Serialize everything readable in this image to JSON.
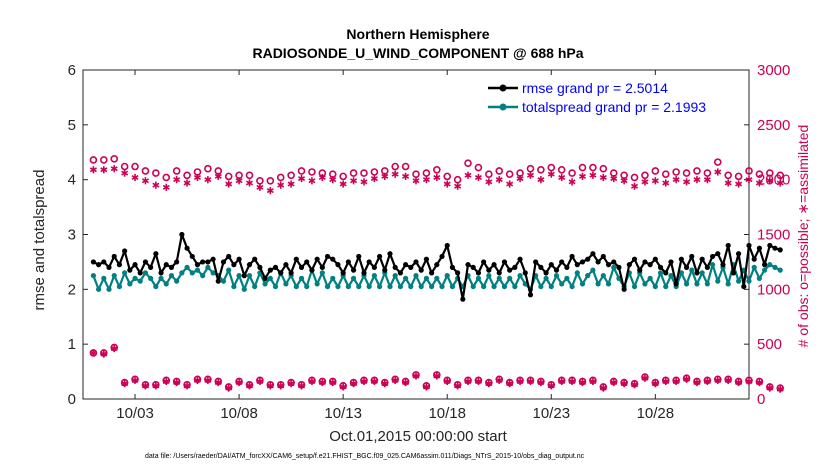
{
  "chart_data": {
    "type": "line",
    "title_line1": "Northern Hemisphere",
    "title_line2": "RADIOSONDE_U_WIND_COMPONENT @ 688 hPa",
    "xlabel": "Oct.01,2015 00:00:00 start",
    "ylabel_left": "rmse and totalspread",
    "ylabel_right": "# of obs: o=possible; ∗=assimilated",
    "ylim_left": [
      0,
      6
    ],
    "ylim_right": [
      0,
      3000
    ],
    "xlim": [
      0.5,
      32.5
    ],
    "yticks_left": [
      "0",
      "1",
      "2",
      "3",
      "4",
      "5",
      "6"
    ],
    "yticks_right": [
      "0",
      "500",
      "1000",
      "1500",
      "2000",
      "2500",
      "3000"
    ],
    "xticks": [
      {
        "label": "10/03",
        "day": 3
      },
      {
        "label": "10/08",
        "day": 8
      },
      {
        "label": "10/13",
        "day": 13
      },
      {
        "label": "10/18",
        "day": 18
      },
      {
        "label": "10/23",
        "day": 23
      },
      {
        "label": "10/28",
        "day": 28
      }
    ],
    "x_start_day": 1.0,
    "x_step_days": 0.25,
    "legend": [
      "rmse grand pr = 2.5014",
      "totalspread grand pr = 2.1993"
    ],
    "series": [
      {
        "name": "rmse",
        "color": "#000000",
        "axis": "left",
        "values": [
          2.5,
          2.45,
          2.5,
          2.4,
          2.6,
          2.45,
          2.7,
          2.35,
          2.45,
          2.3,
          2.5,
          2.4,
          2.65,
          2.3,
          2.45,
          2.4,
          2.5,
          3.0,
          2.75,
          2.6,
          2.45,
          2.5,
          2.5,
          2.55,
          2.15,
          2.5,
          2.6,
          2.45,
          2.55,
          2.25,
          2.45,
          2.55,
          2.4,
          2.2,
          2.35,
          2.4,
          2.3,
          2.45,
          2.3,
          2.55,
          2.4,
          2.5,
          2.35,
          2.55,
          2.4,
          2.6,
          2.55,
          2.45,
          2.3,
          2.5,
          2.35,
          2.6,
          2.3,
          2.5,
          2.4,
          2.6,
          2.35,
          2.65,
          2.4,
          2.3,
          2.45,
          2.4,
          2.5,
          2.35,
          2.55,
          2.3,
          2.45,
          2.6,
          2.8,
          2.4,
          2.3,
          1.82,
          2.45,
          2.4,
          2.3,
          2.5,
          2.35,
          2.45,
          2.3,
          2.5,
          2.35,
          2.4,
          2.55,
          2.3,
          1.9,
          2.5,
          2.4,
          2.3,
          2.45,
          2.35,
          2.5,
          2.4,
          2.6,
          2.45,
          2.5,
          2.55,
          2.65,
          2.5,
          2.6,
          2.45,
          2.5,
          2.4,
          2.0,
          2.45,
          2.55,
          2.35,
          2.5,
          2.45,
          2.55,
          2.4,
          2.3,
          2.5,
          2.1,
          2.55,
          2.4,
          2.6,
          2.3,
          2.55,
          2.4,
          2.6,
          2.65,
          2.45,
          2.8,
          2.3,
          2.65,
          2.05,
          2.8,
          2.55,
          2.75,
          2.45,
          2.8,
          2.75,
          2.72
        ]
      },
      {
        "name": "totalspread",
        "color": "#008080",
        "axis": "left",
        "values": [
          2.25,
          2.0,
          2.2,
          2.0,
          2.25,
          2.05,
          2.3,
          2.1,
          2.2,
          2.15,
          2.3,
          2.2,
          2.05,
          2.2,
          2.1,
          2.25,
          2.15,
          2.3,
          2.4,
          2.3,
          2.35,
          2.25,
          2.4,
          2.3,
          2.25,
          2.15,
          2.35,
          2.05,
          2.25,
          2.0,
          2.25,
          2.05,
          2.3,
          2.1,
          2.2,
          2.05,
          2.3,
          2.1,
          2.25,
          2.05,
          2.2,
          2.05,
          2.35,
          2.1,
          2.3,
          2.05,
          2.2,
          2.05,
          2.25,
          2.05,
          2.2,
          2.05,
          2.25,
          2.05,
          2.25,
          2.05,
          2.3,
          2.05,
          2.25,
          2.05,
          2.2,
          2.05,
          2.25,
          2.05,
          2.2,
          2.05,
          2.2,
          2.05,
          2.25,
          2.05,
          2.2,
          2.05,
          2.25,
          2.05,
          2.2,
          2.05,
          2.25,
          2.05,
          2.2,
          2.05,
          2.2,
          2.05,
          2.25,
          2.1,
          2.0,
          2.25,
          2.05,
          2.2,
          2.05,
          2.25,
          2.1,
          2.2,
          2.05,
          2.3,
          2.1,
          2.25,
          2.35,
          2.1,
          2.25,
          2.1,
          2.4,
          2.2,
          2.05,
          2.3,
          2.05,
          2.3,
          2.1,
          2.2,
          2.05,
          2.3,
          2.05,
          2.25,
          2.05,
          2.3,
          2.1,
          2.35,
          2.1,
          2.3,
          2.1,
          2.45,
          2.15,
          2.4,
          2.1,
          2.45,
          2.15,
          2.35,
          2.15,
          2.4,
          2.2,
          2.35,
          2.45,
          2.4,
          2.35
        ]
      },
      {
        "name": "possible obs",
        "color": "#cc0055",
        "axis": "right",
        "marker": "circle",
        "step_multiplier": 2,
        "values": [
          2180,
          2180,
          2190,
          2120,
          2120,
          2080,
          2060,
          2020,
          2080,
          2040,
          2070,
          2100,
          2080,
          2030,
          2040,
          2040,
          1990,
          1990,
          2020,
          2040,
          2080,
          2070,
          2060,
          2050,
          2030,
          2060,
          2060,
          2070,
          2080,
          2120,
          2120,
          2050,
          2060,
          2090,
          2030,
          2000,
          2150,
          2110,
          2050,
          2080,
          2050,
          2060,
          2100,
          2090,
          2110,
          2090,
          2060,
          2110,
          2110,
          2100,
          2060,
          2040,
          2020,
          2040,
          2080,
          2050,
          2070,
          2060,
          2080,
          2060,
          2160,
          2040,
          2030,
          2080,
          2050,
          2060,
          2040
        ]
      },
      {
        "name": "assimilated obs",
        "color": "#cc0055",
        "axis": "right",
        "marker": "asterisk",
        "step_multiplier": 2,
        "values": [
          2090,
          2090,
          2100,
          2060,
          2020,
          1990,
          1950,
          1930,
          2000,
          1970,
          2020,
          2000,
          2030,
          1960,
          1990,
          1970,
          1930,
          1900,
          1950,
          1960,
          2010,
          1990,
          2020,
          2000,
          1960,
          1990,
          1980,
          2010,
          2030,
          2050,
          2030,
          1990,
          2000,
          2020,
          1960,
          1940,
          2040,
          2020,
          1980,
          2000,
          1960,
          2010,
          2040,
          2000,
          2050,
          2020,
          1980,
          2030,
          2040,
          2020,
          2010,
          1990,
          1940,
          1980,
          1990,
          1970,
          2000,
          1980,
          2000,
          2000,
          2070,
          1970,
          1960,
          2000,
          1970,
          1990,
          1970
        ]
      },
      {
        "name": "possible obs low",
        "color": "#cc0055",
        "axis": "right",
        "marker": "circle",
        "step_multiplier": 2,
        "values": [
          420,
          420,
          470,
          150,
          180,
          130,
          130,
          170,
          160,
          130,
          180,
          180,
          160,
          110,
          160,
          130,
          170,
          130,
          130,
          150,
          130,
          170,
          160,
          160,
          120,
          150,
          170,
          170,
          150,
          180,
          160,
          220,
          120,
          220,
          170,
          130,
          170,
          170,
          150,
          180,
          150,
          170,
          170,
          160,
          130,
          170,
          170,
          160,
          170,
          110,
          160,
          150,
          140,
          200,
          150,
          170,
          170,
          190,
          160,
          170,
          180,
          180,
          160,
          170,
          160,
          110,
          100
        ]
      },
      {
        "name": "assimilated obs low",
        "color": "#cc0055",
        "axis": "right",
        "marker": "asterisk",
        "step_multiplier": 2,
        "values": [
          420,
          410,
          460,
          140,
          170,
          120,
          120,
          160,
          150,
          120,
          170,
          170,
          150,
          100,
          150,
          120,
          160,
          120,
          120,
          140,
          120,
          160,
          150,
          150,
          110,
          140,
          160,
          160,
          140,
          170,
          150,
          210,
          110,
          210,
          160,
          120,
          160,
          160,
          140,
          170,
          140,
          160,
          160,
          150,
          120,
          160,
          160,
          150,
          160,
          100,
          150,
          140,
          130,
          190,
          140,
          160,
          160,
          180,
          150,
          160,
          170,
          170,
          150,
          160,
          150,
          100,
          90
        ]
      }
    ],
    "footer": "data file: /Users/raeder/DAI/ATM_forcXX/CAM6_setup/f.e21.FHIST_BGC.f09_025.CAM6assim.011/Diags_NTrS_2015-10/obs_diag_output.nc"
  }
}
